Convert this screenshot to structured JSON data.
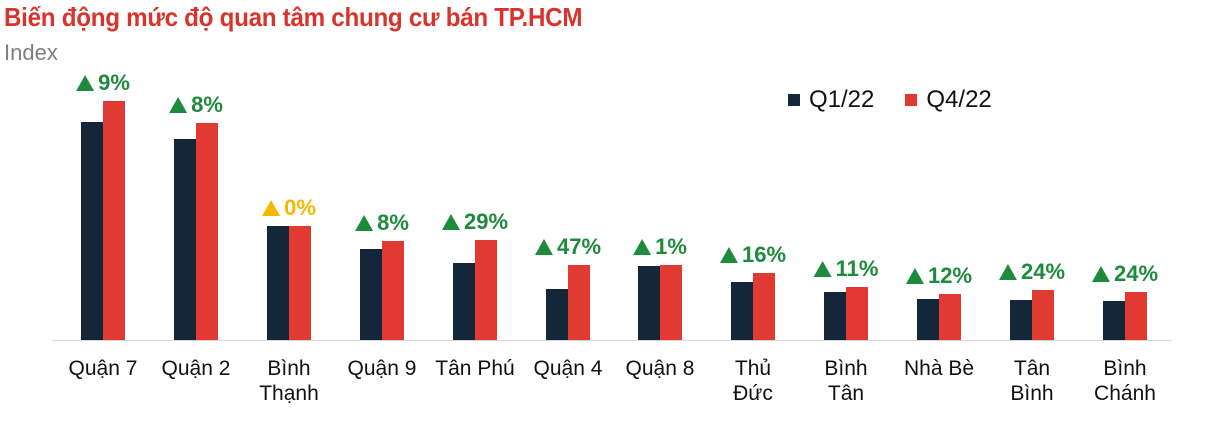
{
  "title": "Biến động mức độ quan tâm chung cư bán TP.HCM",
  "subtitle": "Index",
  "colors": {
    "title": "#d9342b",
    "subtitle": "#7f7f7f",
    "q1": "#13263a",
    "q4": "#e03a33",
    "up_green": "#1e8a3c",
    "flat_yellow": "#f5b800"
  },
  "legend": [
    {
      "label": "Q1/22",
      "color": "#13263a"
    },
    {
      "label": "Q4/22",
      "color": "#e03a33"
    }
  ],
  "chart_data": {
    "type": "bar",
    "title": "Biến động mức độ quan tâm chung cư bán TP.HCM",
    "subtitle": "Index",
    "xlabel": "",
    "ylabel": "Index",
    "grid": false,
    "legend_position": "top-right",
    "categories": [
      "Quận 7",
      "Quận 2",
      "Bình Thạnh",
      "Quận 9",
      "Tân Phú",
      "Quận 4",
      "Quận 8",
      "Thủ Đức",
      "Bình Tân",
      "Nhà Bè",
      "Tân Bình",
      "Bình Chánh"
    ],
    "category_lines": [
      [
        "Quận 7"
      ],
      [
        "Quận 2"
      ],
      [
        "Bình",
        "Thạnh"
      ],
      [
        "Quận 9"
      ],
      [
        "Tân Phú"
      ],
      [
        "Quận 4"
      ],
      [
        "Quận 8"
      ],
      [
        "Thủ",
        "Đức"
      ],
      [
        "Bình",
        "Tân"
      ],
      [
        "Nhà Bè"
      ],
      [
        "Tân",
        "Bình"
      ],
      [
        "Bình",
        "Chánh"
      ]
    ],
    "series": [
      {
        "name": "Q1/22",
        "values": [
          218,
          201,
          114,
          91,
          77,
          51,
          74,
          58,
          48,
          41,
          40,
          39
        ]
      },
      {
        "name": "Q4/22",
        "values": [
          239,
          217,
          114,
          99,
          100,
          75,
          75,
          67,
          53,
          46,
          50,
          48
        ]
      }
    ],
    "annotations": [
      {
        "category": "Quận 7",
        "text": "9%",
        "direction": "up",
        "color": "#1e8a3c"
      },
      {
        "category": "Quận 2",
        "text": "8%",
        "direction": "up",
        "color": "#1e8a3c"
      },
      {
        "category": "Bình Thạnh",
        "text": "0%",
        "direction": "up",
        "color": "#f5b800"
      },
      {
        "category": "Quận 9",
        "text": "8%",
        "direction": "up",
        "color": "#1e8a3c"
      },
      {
        "category": "Tân Phú",
        "text": "29%",
        "direction": "up",
        "color": "#1e8a3c"
      },
      {
        "category": "Quận 4",
        "text": "47%",
        "direction": "up",
        "color": "#1e8a3c"
      },
      {
        "category": "Quận 8",
        "text": "1%",
        "direction": "up",
        "color": "#1e8a3c"
      },
      {
        "category": "Thủ Đức",
        "text": "16%",
        "direction": "up",
        "color": "#1e8a3c"
      },
      {
        "category": "Bình Tân",
        "text": "11%",
        "direction": "up",
        "color": "#1e8a3c"
      },
      {
        "category": "Nhà Bè",
        "text": "12%",
        "direction": "up",
        "color": "#1e8a3c"
      },
      {
        "category": "Tân Bình",
        "text": "24%",
        "direction": "up",
        "color": "#1e8a3c"
      },
      {
        "category": "Bình Chánh",
        "text": "24%",
        "direction": "up",
        "color": "#1e8a3c"
      }
    ],
    "ylim": [
      0,
      250
    ]
  }
}
